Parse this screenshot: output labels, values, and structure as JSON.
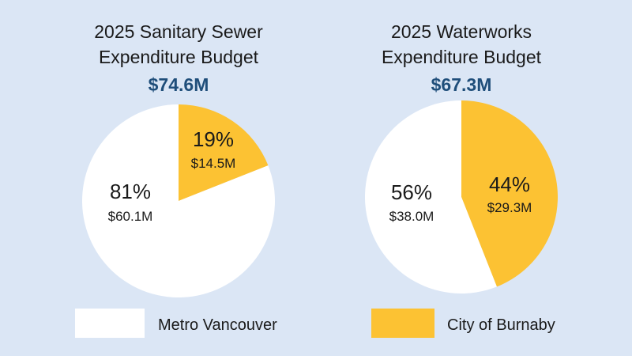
{
  "chart_data": [
    {
      "type": "pie",
      "title": [
        "2025 Sanitary Sewer",
        "Expenditure Budget"
      ],
      "total_label": "$74.6M",
      "slices": [
        {
          "series": "city",
          "percent": 19,
          "percent_label": "19%",
          "amount_label": "$14.5M"
        },
        {
          "series": "metro",
          "percent": 81,
          "percent_label": "81%",
          "amount_label": "$60.1M"
        }
      ]
    },
    {
      "type": "pie",
      "title": [
        "2025 Waterworks",
        "Expenditure Budget"
      ],
      "total_label": "$67.3M",
      "slices": [
        {
          "series": "city",
          "percent": 44,
          "percent_label": "44%",
          "amount_label": "$29.3M"
        },
        {
          "series": "metro",
          "percent": 56,
          "percent_label": "56%",
          "amount_label": "$38.0M"
        }
      ]
    }
  ],
  "legend": {
    "position": "bottom",
    "items": [
      {
        "key": "metro",
        "label": "Metro Vancouver",
        "color": "#ffffff"
      },
      {
        "key": "city",
        "label": "City of Burnaby",
        "color": "#fcc233"
      }
    ]
  },
  "colors": {
    "background": "#dbe6f5",
    "total": "#1f4e7a"
  }
}
